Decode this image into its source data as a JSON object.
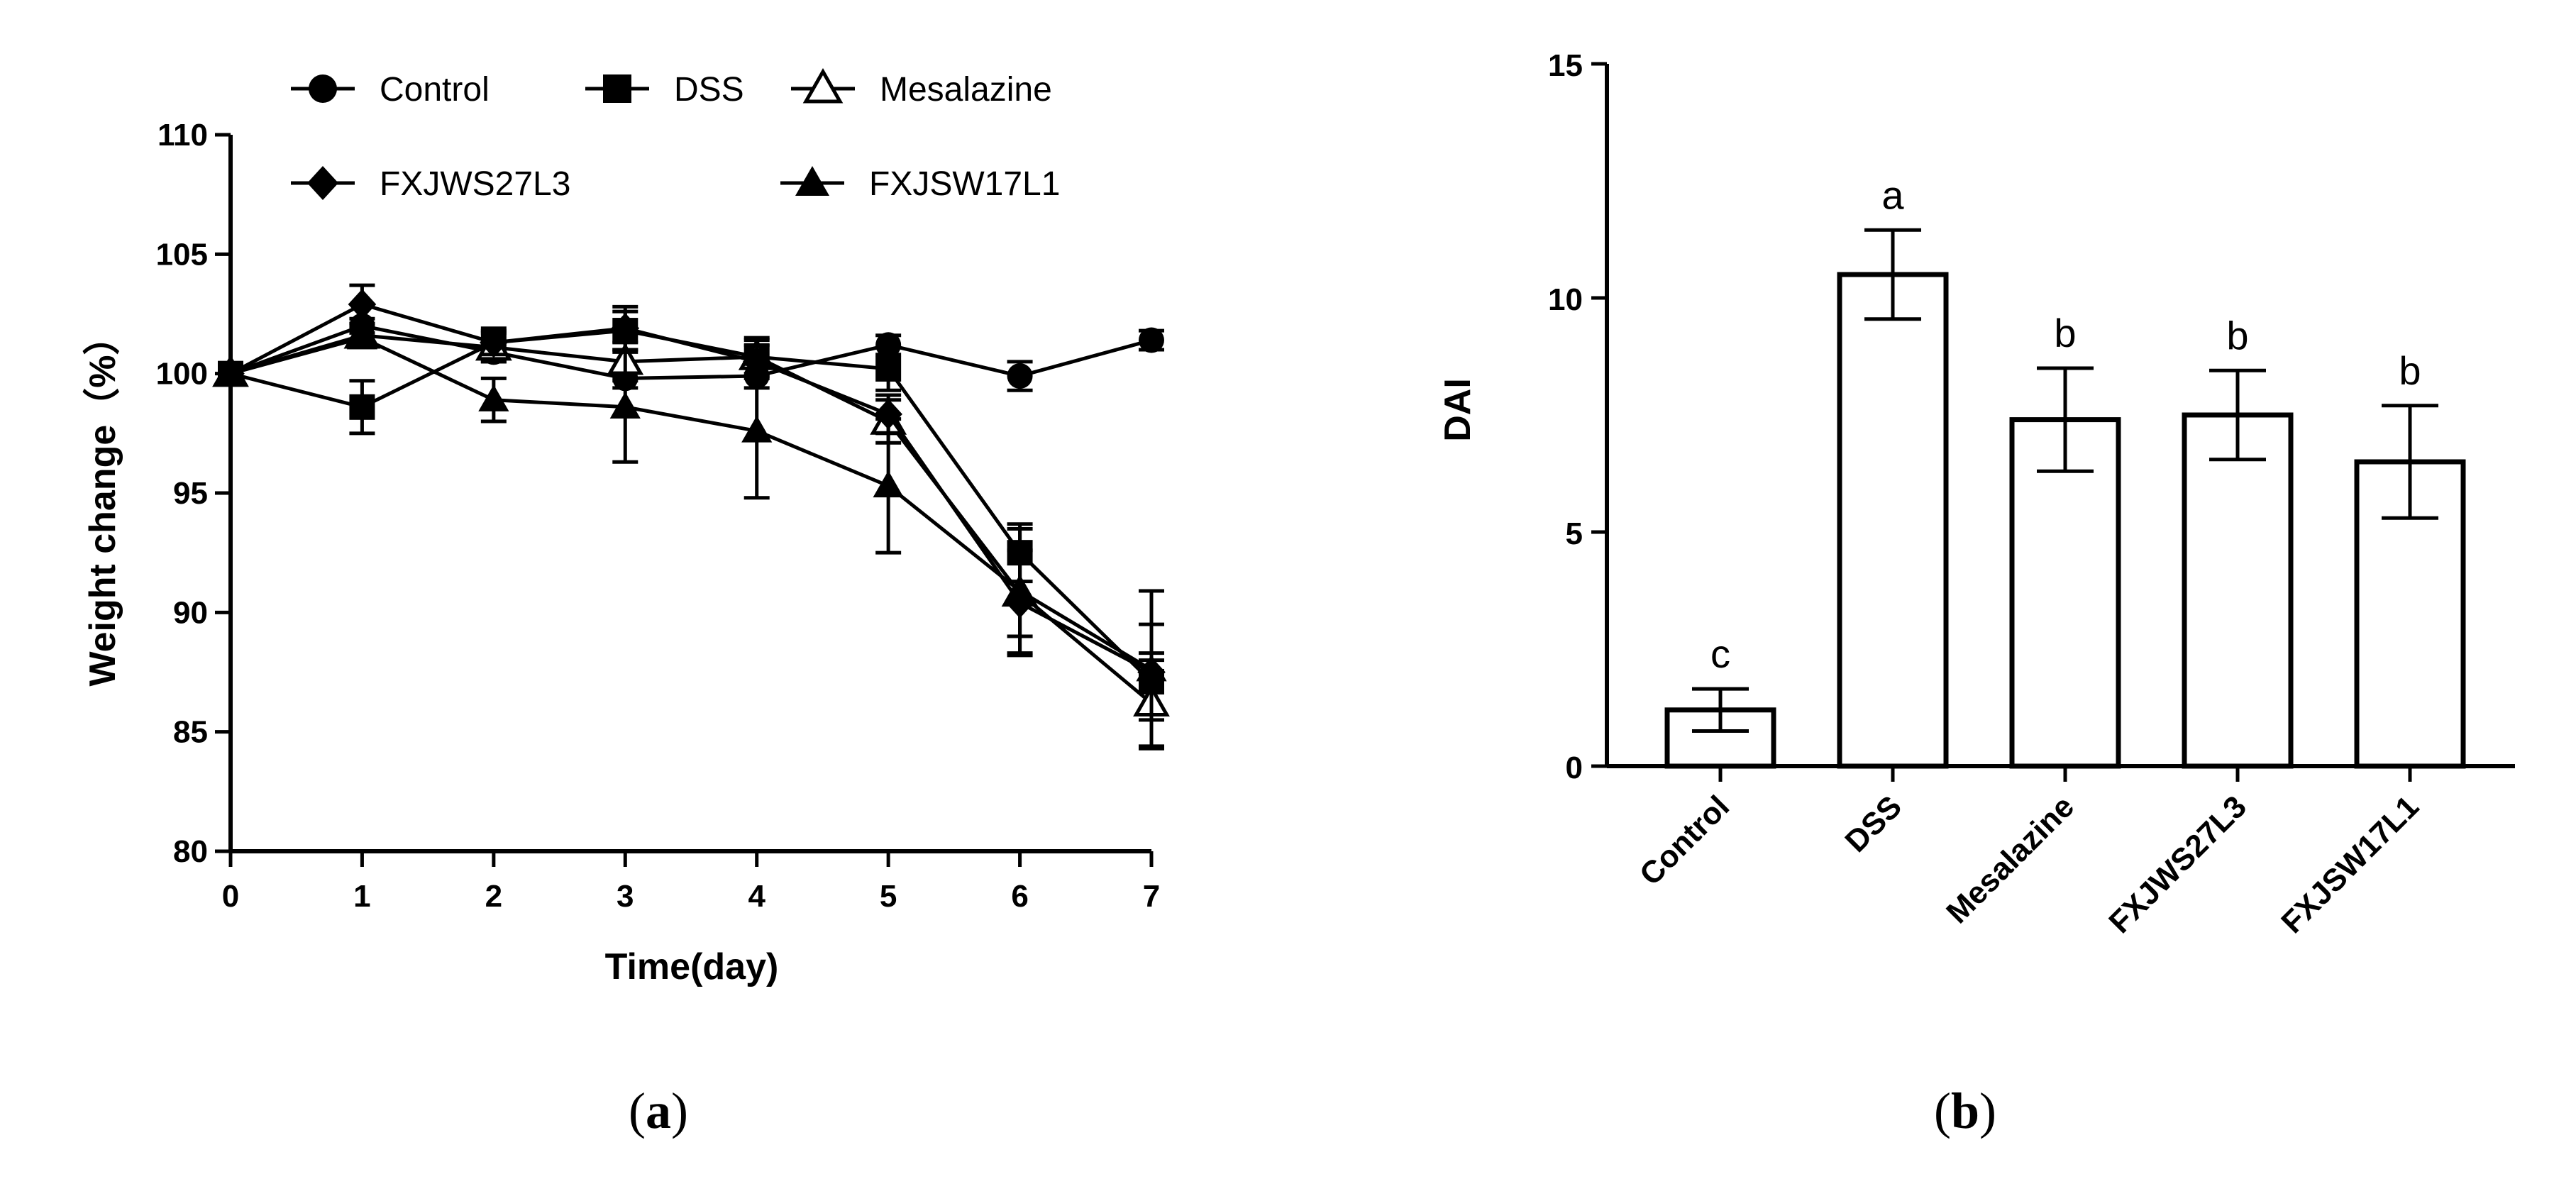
{
  "panels": {
    "a": {
      "label_open": "(",
      "label_letter": "a",
      "label_close": ")"
    },
    "b": {
      "label_open": "(",
      "label_letter": "b",
      "label_close": ")"
    }
  },
  "colors": {
    "ink": "#000000",
    "background": "#ffffff"
  },
  "chart_data": [
    {
      "type": "line",
      "xlabel": "Time(day)",
      "ylabel": "Weight change（%）",
      "x": [
        0,
        1,
        2,
        3,
        4,
        5,
        6,
        7
      ],
      "xlim": [
        0,
        7
      ],
      "ylim": [
        80,
        110
      ],
      "yticks": [
        80,
        85,
        90,
        95,
        100,
        105,
        110
      ],
      "xticks": [
        0,
        1,
        2,
        3,
        4,
        5,
        6,
        7
      ],
      "grid": false,
      "legend_position": "top",
      "series": [
        {
          "name": "Control",
          "marker": "filled-circle",
          "values": [
            100.0,
            102.0,
            100.9,
            99.8,
            99.9,
            101.2,
            99.9,
            101.4
          ],
          "errors": [
            0,
            0.3,
            0.4,
            0.4,
            0.5,
            0.4,
            0.6,
            0.4
          ]
        },
        {
          "name": "DSS",
          "marker": "filled-square",
          "values": [
            100.0,
            98.6,
            101.3,
            101.8,
            100.7,
            100.2,
            92.5,
            87.1
          ],
          "errors": [
            0,
            1.1,
            0.6,
            0.8,
            0.7,
            0.9,
            1.2,
            1.2
          ]
        },
        {
          "name": "Mesalazine",
          "marker": "open-triangle",
          "values": [
            100.0,
            101.6,
            101.1,
            100.5,
            100.7,
            98.0,
            90.8,
            86.2
          ],
          "errors": [
            0,
            0.5,
            0.6,
            0.8,
            0.8,
            0.9,
            1.8,
            1.8
          ]
        },
        {
          "name": "FXJWS27L3",
          "marker": "filled-diamond",
          "values": [
            100.0,
            102.9,
            101.3,
            101.9,
            100.5,
            98.3,
            90.4,
            87.5
          ],
          "errors": [
            0,
            0.8,
            0.5,
            0.9,
            0.7,
            0.8,
            2.2,
            2.0
          ]
        },
        {
          "name": "FXJSW17L1",
          "marker": "filled-triangle",
          "values": [
            100.0,
            101.5,
            98.9,
            98.6,
            97.6,
            95.3,
            90.9,
            87.6
          ],
          "errors": [
            0,
            0.4,
            0.9,
            2.3,
            2.8,
            2.8,
            2.6,
            3.3
          ]
        }
      ]
    },
    {
      "type": "bar",
      "xlabel": "",
      "ylabel": "DAI",
      "categories": [
        "Control",
        "DSS",
        "Mesalazine",
        "FXJWS27L3",
        "FXJSW17L1"
      ],
      "values": [
        1.2,
        10.5,
        7.4,
        7.5,
        6.5
      ],
      "errors": [
        0.45,
        0.95,
        1.1,
        0.95,
        1.2
      ],
      "significance": [
        "c",
        "a",
        "b",
        "b",
        "b"
      ],
      "ylim": [
        0,
        15
      ],
      "yticks": [
        0,
        5,
        10,
        15
      ],
      "grid": false,
      "bar_fill": "#ffffff",
      "bar_edge": "#000000"
    }
  ]
}
